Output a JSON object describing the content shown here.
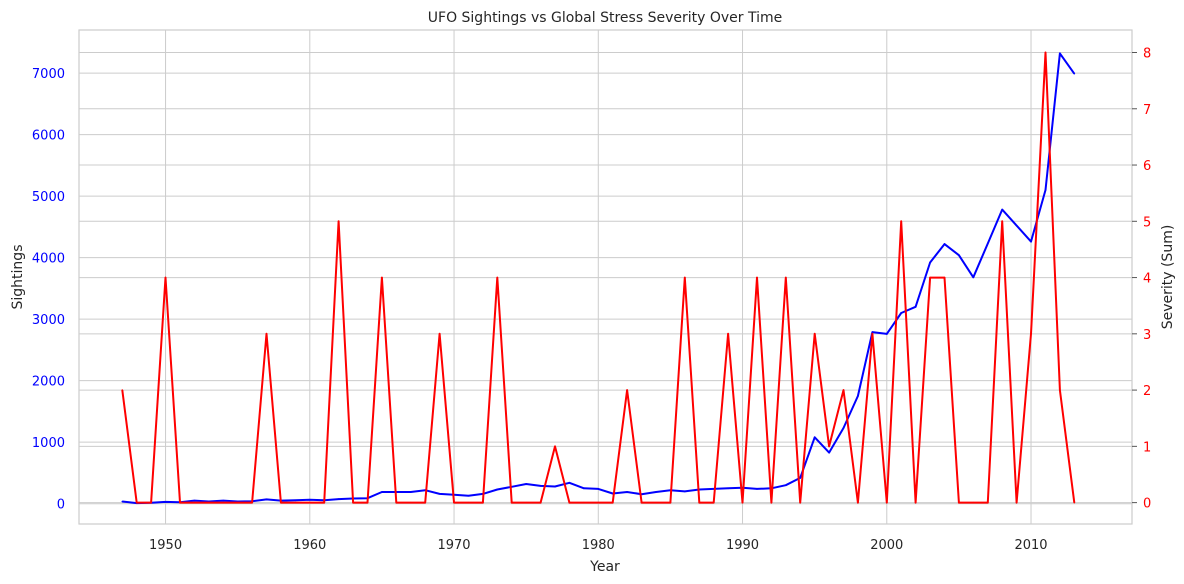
{
  "chart_data": {
    "type": "line",
    "title": "UFO Sightings vs Global Stress Severity Over Time",
    "xlabel": "Year",
    "ylabel_left": "Sightings",
    "ylabel_right": "Severity (Sum)",
    "xlim": [
      1944,
      2017
    ],
    "ylim_left": [
      -330,
      7700
    ],
    "ylim_right": [
      -0.38,
      8.4
    ],
    "x_ticks": [
      1950,
      1960,
      1970,
      1980,
      1990,
      2000,
      2010
    ],
    "y_ticks_left": [
      0,
      1000,
      2000,
      3000,
      4000,
      5000,
      6000,
      7000
    ],
    "y_ticks_right": [
      0,
      1,
      2,
      3,
      4,
      5,
      6,
      7,
      8
    ],
    "grid": true,
    "colors": {
      "sightings": "#0000ff",
      "severity": "#ff0000"
    },
    "x": [
      1947,
      1948,
      1949,
      1950,
      1951,
      1952,
      1953,
      1954,
      1955,
      1956,
      1957,
      1958,
      1959,
      1960,
      1961,
      1962,
      1963,
      1964,
      1965,
      1966,
      1967,
      1968,
      1969,
      1970,
      1971,
      1972,
      1973,
      1974,
      1975,
      1976,
      1977,
      1978,
      1979,
      1980,
      1981,
      1982,
      1983,
      1984,
      1985,
      1986,
      1987,
      1988,
      1989,
      1990,
      1991,
      1992,
      1993,
      1994,
      1995,
      1996,
      1997,
      1998,
      1999,
      2000,
      2001,
      2002,
      2003,
      2004,
      2005,
      2006,
      2007,
      2008,
      2009,
      2010,
      2011,
      2012,
      2013
    ],
    "series": [
      {
        "name": "Sightings",
        "axis": "left",
        "values": [
          35,
          10,
          15,
          30,
          25,
          50,
          35,
          50,
          35,
          40,
          70,
          50,
          55,
          65,
          55,
          75,
          85,
          90,
          190,
          190,
          190,
          220,
          160,
          145,
          130,
          160,
          230,
          275,
          320,
          290,
          280,
          340,
          250,
          240,
          165,
          190,
          155,
          190,
          220,
          200,
          230,
          240,
          250,
          260,
          240,
          250,
          300,
          420,
          1080,
          830,
          1230,
          1750,
          2790,
          2760,
          3100,
          3200,
          3920,
          4220,
          4040,
          3680,
          4230,
          4780,
          4520,
          4260,
          5100,
          7320,
          6990
        ]
      },
      {
        "name": "Severity",
        "axis": "right",
        "values": [
          2,
          0,
          0,
          4,
          0,
          0,
          0,
          0,
          0,
          0,
          3,
          0,
          0,
          0,
          0,
          5,
          0,
          0,
          4,
          0,
          0,
          0,
          3,
          0,
          0,
          0,
          4,
          0,
          0,
          0,
          1,
          0,
          0,
          0,
          0,
          2,
          0,
          0,
          0,
          4,
          0,
          0,
          3,
          0,
          4,
          0,
          4,
          0,
          3,
          1,
          2,
          0,
          3,
          0,
          5,
          0,
          4,
          4,
          0,
          0,
          0,
          5,
          0,
          3,
          8,
          2,
          0
        ]
      }
    ]
  }
}
